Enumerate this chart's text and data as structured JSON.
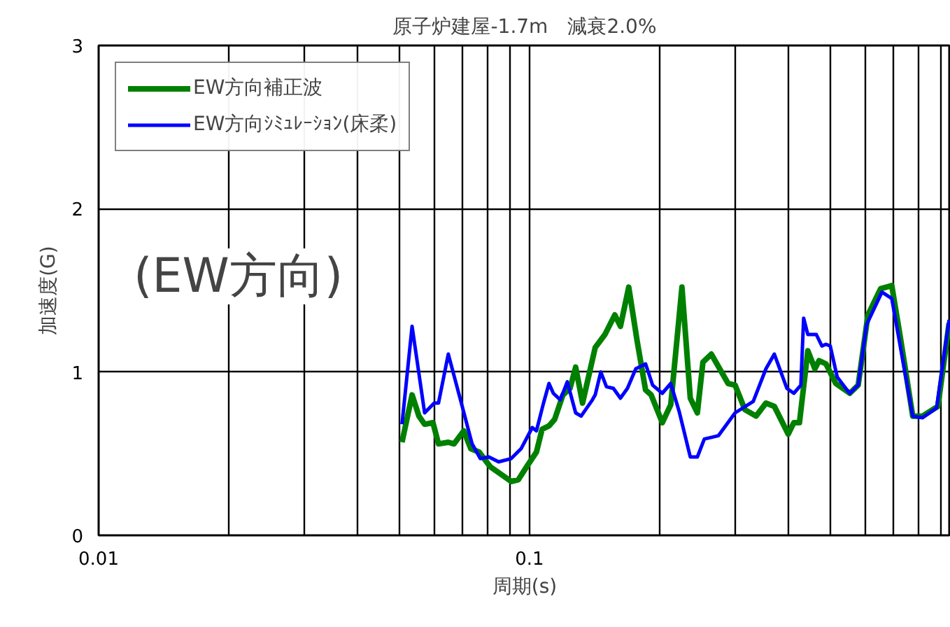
{
  "chart_data": {
    "type": "line",
    "title": "原子炉建屋-1.7m　減衰2.0%",
    "xlabel": "周期(s)",
    "ylabel": "加速度(G)",
    "log": "x",
    "grid": true,
    "legend": "top left",
    "line_style": "solid",
    "marker": "none",
    "annotations": [
      "(EW方向)"
    ],
    "xlim": [
      0.01,
      0.95
    ],
    "ylim": [
      0,
      3
    ],
    "xticks": [
      0.01,
      {
        "value": 0.02,
        "label": null
      },
      {
        "value": 0.03,
        "label": null
      },
      {
        "value": 0.04,
        "label": null
      },
      {
        "value": 0.05,
        "label": null
      },
      {
        "value": 0.06,
        "label": null
      },
      {
        "value": 0.07,
        "label": null
      },
      {
        "value": 0.08,
        "label": null
      },
      {
        "value": 0.09,
        "label": null
      },
      0.1,
      {
        "value": 0.2,
        "label": null
      },
      {
        "value": 0.3,
        "label": null
      },
      {
        "value": 0.4,
        "label": null
      },
      {
        "value": 0.5,
        "label": null
      },
      {
        "value": 0.6,
        "label": null
      },
      {
        "value": 0.7,
        "label": null
      },
      {
        "value": 0.8,
        "label": null
      },
      {
        "value": 0.9,
        "label": null
      }
    ],
    "yticks": [
      0,
      1,
      2,
      3
    ],
    "series": [
      {
        "name": "EW方向補正波",
        "color": "#008000",
        "x": [
          0.0506,
          0.0534,
          0.0554,
          0.0571,
          0.0597,
          0.0615,
          0.0648,
          0.0668,
          0.0704,
          0.0731,
          0.0764,
          0.0811,
          0.0907,
          0.0942,
          0.0985,
          0.1038,
          0.107,
          0.111,
          0.1144,
          0.1196,
          0.1242,
          0.128,
          0.1328,
          0.1421,
          0.1497,
          0.1578,
          0.1626,
          0.17,
          0.1778,
          0.186,
          0.1916,
          0.2034,
          0.2128,
          0.2259,
          0.2362,
          0.2453,
          0.2527,
          0.2643,
          0.2891,
          0.3001,
          0.3162,
          0.3357,
          0.3539,
          0.3701,
          0.3987,
          0.4108,
          0.4233,
          0.4427,
          0.4597,
          0.4701,
          0.4878,
          0.514,
          0.5541,
          0.5794,
          0.6105,
          0.6531,
          0.6933,
          0.7251,
          0.7755,
          0.8173,
          0.8874,
          0.9419
        ],
        "values": [
          0.57,
          0.86,
          0.73,
          0.68,
          0.69,
          0.56,
          0.57,
          0.56,
          0.64,
          0.53,
          0.51,
          0.42,
          0.33,
          0.34,
          0.42,
          0.51,
          0.65,
          0.67,
          0.71,
          0.86,
          0.9,
          1.03,
          0.81,
          1.15,
          1.23,
          1.35,
          1.28,
          1.52,
          1.19,
          0.89,
          0.86,
          0.69,
          0.8,
          1.52,
          0.84,
          0.75,
          1.06,
          1.11,
          0.93,
          0.92,
          0.77,
          0.73,
          0.81,
          0.79,
          0.62,
          0.69,
          0.69,
          1.13,
          1.02,
          1.07,
          1.05,
          0.93,
          0.87,
          0.92,
          1.35,
          1.51,
          1.53,
          1.22,
          0.73,
          0.73,
          0.79,
          1.3
        ]
      },
      {
        "name": "EW方向ｼﾐｭﾚｰｼｮﾝ(床柔)",
        "color": "#0000ff",
        "x": [
          0.0506,
          0.0534,
          0.0571,
          0.0601,
          0.0615,
          0.0648,
          0.0698,
          0.0736,
          0.0769,
          0.0805,
          0.0848,
          0.0907,
          0.0956,
          0.1015,
          0.1038,
          0.1078,
          0.111,
          0.1136,
          0.1179,
          0.1224,
          0.128,
          0.1318,
          0.14,
          0.1421,
          0.1464,
          0.1509,
          0.1566,
          0.1626,
          0.1688,
          0.1765,
          0.186,
          0.1931,
          0.2034,
          0.2128,
          0.2225,
          0.2362,
          0.2453,
          0.2546,
          0.2744,
          0.3001,
          0.3307,
          0.3539,
          0.3701,
          0.3958,
          0.4108,
          0.4265,
          0.4329,
          0.4427,
          0.4632,
          0.4772,
          0.4878,
          0.499,
          0.5179,
          0.5458,
          0.5541,
          0.5794,
          0.606,
          0.6578,
          0.6933,
          0.7755,
          0.8173,
          0.8808,
          0.9419
        ],
        "values": [
          0.68,
          1.28,
          0.75,
          0.81,
          0.81,
          1.11,
          0.79,
          0.56,
          0.47,
          0.48,
          0.45,
          0.47,
          0.53,
          0.66,
          0.64,
          0.81,
          0.93,
          0.87,
          0.83,
          0.94,
          0.75,
          0.73,
          0.83,
          0.86,
          1.0,
          0.91,
          0.9,
          0.84,
          0.9,
          1.02,
          1.05,
          0.92,
          0.87,
          0.93,
          0.76,
          0.48,
          0.48,
          0.59,
          0.61,
          0.75,
          0.82,
          1.02,
          1.11,
          0.9,
          0.87,
          0.92,
          1.33,
          1.23,
          1.23,
          1.16,
          1.17,
          1.16,
          0.97,
          0.89,
          0.87,
          0.92,
          1.29,
          1.49,
          1.45,
          0.73,
          0.72,
          0.78,
          1.32
        ]
      }
    ]
  }
}
